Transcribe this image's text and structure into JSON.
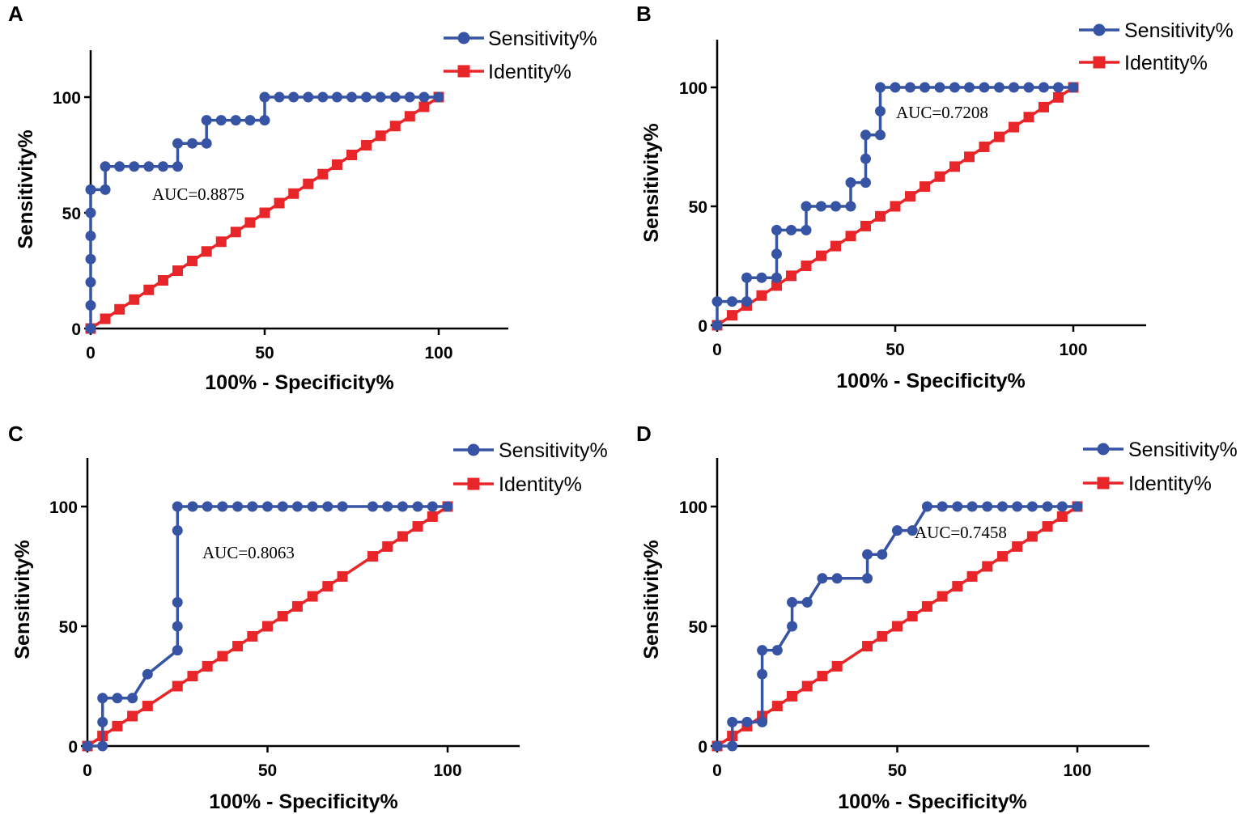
{
  "colors": {
    "sensitivity": "#3653a4",
    "identity": "#e8262a"
  },
  "chart_data": [
    {
      "panel": "A",
      "type": "line",
      "xlabel": "100% - Specificity%",
      "ylabel": "Sensitivity%",
      "xlim": [
        0,
        120
      ],
      "ylim": [
        0,
        120
      ],
      "xticks": [
        0,
        50,
        100
      ],
      "yticks": [
        0,
        50,
        100
      ],
      "annotation": "AUC=0.8875",
      "legend": [
        "Sensitivity%",
        "Identity%"
      ],
      "series": [
        {
          "name": "Sensitivity%",
          "marker": "circle",
          "x": [
            0,
            0,
            0,
            0,
            0,
            0,
            0,
            4.2,
            4.2,
            8.3,
            12.5,
            16.7,
            20.8,
            25,
            25,
            29.2,
            33.3,
            33.3,
            37.5,
            41.7,
            45.8,
            50,
            50,
            54.2,
            58.3,
            62.5,
            66.7,
            70.8,
            75,
            79.2,
            83.3,
            87.5,
            91.7,
            95.8,
            100
          ],
          "y": [
            0,
            10,
            20,
            30,
            40,
            50,
            60,
            60,
            70,
            70,
            70,
            70,
            70,
            70,
            80,
            80,
            80,
            90,
            90,
            90,
            90,
            90,
            100,
            100,
            100,
            100,
            100,
            100,
            100,
            100,
            100,
            100,
            100,
            100,
            100
          ]
        },
        {
          "name": "Identity%",
          "marker": "square",
          "x": [
            0,
            4.2,
            8.3,
            12.5,
            16.7,
            20.8,
            25,
            29.2,
            33.3,
            37.5,
            41.7,
            45.8,
            50,
            54.2,
            58.3,
            62.5,
            66.7,
            70.8,
            75,
            79.2,
            83.3,
            87.5,
            91.7,
            95.8,
            100
          ],
          "y": [
            0,
            4.2,
            8.3,
            12.5,
            16.7,
            20.8,
            25,
            29.2,
            33.3,
            37.5,
            41.7,
            45.8,
            50,
            54.2,
            58.3,
            62.5,
            66.7,
            70.8,
            75,
            79.2,
            83.3,
            87.5,
            91.7,
            95.8,
            100
          ]
        }
      ]
    },
    {
      "panel": "B",
      "type": "line",
      "xlabel": "100% - Specificity%",
      "ylabel": "Sensitivity%",
      "xlim": [
        0,
        120
      ],
      "ylim": [
        0,
        120
      ],
      "xticks": [
        0,
        50,
        100
      ],
      "yticks": [
        0,
        50,
        100
      ],
      "annotation": "AUC=0.7208",
      "legend": [
        "Sensitivity%",
        "Identity%"
      ],
      "series": [
        {
          "name": "Sensitivity%",
          "marker": "circle",
          "x": [
            0,
            0,
            4.2,
            8.3,
            8.3,
            12.5,
            16.7,
            16.7,
            16.7,
            20.8,
            25,
            25,
            29.2,
            33.3,
            37.5,
            37.5,
            41.7,
            41.7,
            41.7,
            45.8,
            45.8,
            45.8,
            50,
            54.2,
            58.3,
            62.5,
            66.7,
            70.8,
            75,
            79.2,
            83.3,
            87.5,
            91.7,
            95.8,
            100
          ],
          "y": [
            0,
            10,
            10,
            10,
            20,
            20,
            20,
            30,
            40,
            40,
            40,
            50,
            50,
            50,
            50,
            60,
            60,
            70,
            80,
            80,
            90,
            100,
            100,
            100,
            100,
            100,
            100,
            100,
            100,
            100,
            100,
            100,
            100,
            100,
            100
          ]
        },
        {
          "name": "Identity%",
          "marker": "square",
          "x": [
            0,
            4.2,
            8.3,
            12.5,
            16.7,
            20.8,
            25,
            29.2,
            33.3,
            37.5,
            41.7,
            45.8,
            50,
            54.2,
            58.3,
            62.5,
            66.7,
            70.8,
            75,
            79.2,
            83.3,
            87.5,
            91.7,
            95.8,
            100
          ],
          "y": [
            0,
            4.2,
            8.3,
            12.5,
            16.7,
            20.8,
            25,
            29.2,
            33.3,
            37.5,
            41.7,
            45.8,
            50,
            54.2,
            58.3,
            62.5,
            66.7,
            70.8,
            75,
            79.2,
            83.3,
            87.5,
            91.7,
            95.8,
            100
          ]
        }
      ]
    },
    {
      "panel": "C",
      "type": "line",
      "xlabel": "100% - Specificity%",
      "ylabel": "Sensitivity%",
      "xlim": [
        0,
        120
      ],
      "ylim": [
        0,
        120
      ],
      "xticks": [
        0,
        50,
        100
      ],
      "yticks": [
        0,
        50,
        100
      ],
      "annotation": "AUC=0.8063",
      "legend": [
        "Sensitivity%",
        "Identity%"
      ],
      "series": [
        {
          "name": "Sensitivity%",
          "marker": "circle",
          "x": [
            0,
            4.2,
            4.2,
            4.2,
            8.3,
            12.5,
            16.7,
            25,
            25,
            25,
            25,
            25,
            29.2,
            33.3,
            37.5,
            41.7,
            45.8,
            50,
            54.2,
            58.3,
            62.5,
            66.7,
            70.8,
            79.2,
            83.3,
            87.5,
            91.7,
            95.8,
            100
          ],
          "y": [
            0,
            0,
            10,
            20,
            20,
            20,
            30,
            40,
            50,
            60,
            90,
            100,
            100,
            100,
            100,
            100,
            100,
            100,
            100,
            100,
            100,
            100,
            100,
            100,
            100,
            100,
            100,
            100,
            100
          ]
        },
        {
          "name": "Identity%",
          "marker": "square",
          "x": [
            0,
            4.2,
            8.3,
            12.5,
            16.7,
            25,
            29.2,
            33.3,
            37.5,
            41.7,
            45.8,
            50,
            54.2,
            58.3,
            62.5,
            66.7,
            70.8,
            79.2,
            83.3,
            87.5,
            91.7,
            95.8,
            100
          ],
          "y": [
            0,
            4.2,
            8.3,
            12.5,
            16.7,
            25,
            29.2,
            33.3,
            37.5,
            41.7,
            45.8,
            50,
            54.2,
            58.3,
            62.5,
            66.7,
            70.8,
            79.2,
            83.3,
            87.5,
            91.7,
            95.8,
            100
          ]
        }
      ]
    },
    {
      "panel": "D",
      "type": "line",
      "xlabel": "100% - Specificity%",
      "ylabel": "Sensitivity%",
      "xlim": [
        0,
        120
      ],
      "ylim": [
        0,
        120
      ],
      "xticks": [
        0,
        50,
        100
      ],
      "yticks": [
        0,
        50,
        100
      ],
      "annotation": "AUC=0.7458",
      "legend": [
        "Sensitivity%",
        "Identity%"
      ],
      "series": [
        {
          "name": "Sensitivity%",
          "marker": "circle",
          "x": [
            0,
            4.2,
            4.2,
            8.3,
            12.5,
            12.5,
            12.5,
            16.7,
            20.8,
            20.8,
            25,
            29.2,
            33.3,
            41.7,
            41.7,
            45.8,
            50,
            54.2,
            58.3,
            62.5,
            66.7,
            70.8,
            75,
            79.2,
            83.3,
            87.5,
            91.7,
            95.8,
            100
          ],
          "y": [
            0,
            0,
            10,
            10,
            10,
            30,
            40,
            40,
            50,
            60,
            60,
            70,
            70,
            70,
            80,
            80,
            90,
            90,
            100,
            100,
            100,
            100,
            100,
            100,
            100,
            100,
            100,
            100,
            100
          ]
        },
        {
          "name": "Identity%",
          "marker": "square",
          "x": [
            0,
            4.2,
            8.3,
            12.5,
            16.7,
            20.8,
            25,
            29.2,
            33.3,
            41.7,
            45.8,
            50,
            54.2,
            58.3,
            62.5,
            66.7,
            70.8,
            75,
            79.2,
            83.3,
            87.5,
            91.7,
            95.8,
            100
          ],
          "y": [
            0,
            4.2,
            8.3,
            12.5,
            16.7,
            20.8,
            25,
            29.2,
            33.3,
            41.7,
            45.8,
            50,
            54.2,
            58.3,
            62.5,
            66.7,
            70.8,
            75,
            79.2,
            83.3,
            87.5,
            91.7,
            95.8,
            100
          ]
        }
      ]
    }
  ]
}
